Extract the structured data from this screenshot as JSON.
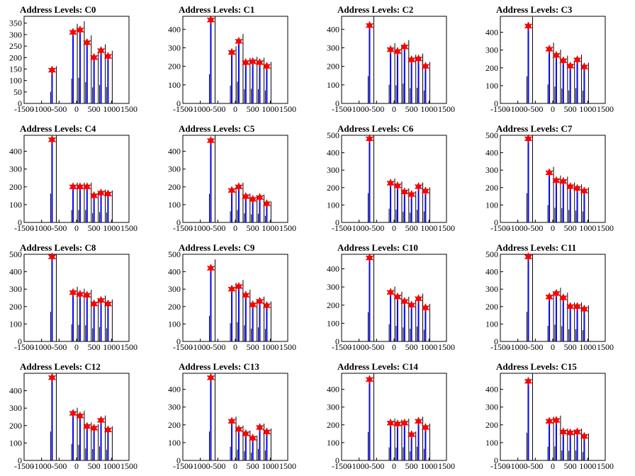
{
  "chart_data": [
    {
      "type": "bar",
      "title": "Address Levels: C0",
      "xlim": [
        -1500,
        1500
      ],
      "ylim": [
        0,
        380
      ],
      "yticks": [
        0,
        50,
        100,
        150,
        200,
        250,
        300,
        350
      ],
      "xticks": [
        -1500,
        -1000,
        -500,
        0,
        500,
        1000,
        1500
      ],
      "peaks": [
        {
          "x": -700,
          "y": 145
        },
        {
          "x": -100,
          "y": 310
        },
        {
          "x": 100,
          "y": 320
        },
        {
          "x": 300,
          "y": 265
        },
        {
          "x": 500,
          "y": 200
        },
        {
          "x": 700,
          "y": 230
        },
        {
          "x": 900,
          "y": 205
        }
      ]
    },
    {
      "type": "bar",
      "title": "Address Levels: C1",
      "xlim": [
        -1500,
        1500
      ],
      "ylim": [
        0,
        470
      ],
      "yticks": [
        0,
        100,
        200,
        300,
        400
      ],
      "xticks": [
        -1500,
        -1000,
        -500,
        0,
        500,
        1000,
        1500
      ],
      "peaks": [
        {
          "x": -700,
          "y": 450
        },
        {
          "x": -100,
          "y": 275
        },
        {
          "x": 100,
          "y": 335
        },
        {
          "x": 300,
          "y": 220
        },
        {
          "x": 500,
          "y": 225
        },
        {
          "x": 700,
          "y": 220
        },
        {
          "x": 900,
          "y": 200
        }
      ]
    },
    {
      "type": "bar",
      "title": "Address Levels: C2",
      "xlim": [
        -1500,
        1500
      ],
      "ylim": [
        0,
        470
      ],
      "yticks": [
        0,
        100,
        200,
        300,
        400
      ],
      "xticks": [
        -1500,
        -1000,
        -500,
        0,
        500,
        1000,
        1500
      ],
      "peaks": [
        {
          "x": -700,
          "y": 420
        },
        {
          "x": -100,
          "y": 290
        },
        {
          "x": 100,
          "y": 280
        },
        {
          "x": 300,
          "y": 305
        },
        {
          "x": 500,
          "y": 235
        },
        {
          "x": 700,
          "y": 240
        },
        {
          "x": 900,
          "y": 200
        }
      ]
    },
    {
      "type": "bar",
      "title": "Address Levels: C3",
      "xlim": [
        -1500,
        1500
      ],
      "ylim": [
        0,
        490
      ],
      "yticks": [
        0,
        100,
        200,
        300,
        400
      ],
      "xticks": [
        -1500,
        -1000,
        -500,
        0,
        500,
        1000,
        1500
      ],
      "peaks": [
        {
          "x": -700,
          "y": 435
        },
        {
          "x": -100,
          "y": 305
        },
        {
          "x": 100,
          "y": 270
        },
        {
          "x": 300,
          "y": 240
        },
        {
          "x": 500,
          "y": 210
        },
        {
          "x": 700,
          "y": 245
        },
        {
          "x": 900,
          "y": 205
        }
      ]
    },
    {
      "type": "bar",
      "title": "Address Levels: C4",
      "xlim": [
        -1500,
        1500
      ],
      "ylim": [
        0,
        490
      ],
      "yticks": [
        0,
        100,
        200,
        300,
        400
      ],
      "xticks": [
        -1500,
        -1000,
        -500,
        0,
        500,
        1000,
        1500
      ],
      "peaks": [
        {
          "x": -700,
          "y": 465
        },
        {
          "x": -100,
          "y": 200
        },
        {
          "x": 100,
          "y": 200
        },
        {
          "x": 300,
          "y": 200
        },
        {
          "x": 500,
          "y": 150
        },
        {
          "x": 700,
          "y": 165
        },
        {
          "x": 900,
          "y": 160
        }
      ]
    },
    {
      "type": "bar",
      "title": "Address Levels: C5",
      "xlim": [
        -1500,
        1500
      ],
      "ylim": [
        0,
        490
      ],
      "yticks": [
        0,
        100,
        200,
        300,
        400
      ],
      "xticks": [
        -1500,
        -1000,
        -500,
        0,
        500,
        1000,
        1500
      ],
      "peaks": [
        {
          "x": -700,
          "y": 460
        },
        {
          "x": -100,
          "y": 180
        },
        {
          "x": 100,
          "y": 200
        },
        {
          "x": 300,
          "y": 145
        },
        {
          "x": 500,
          "y": 130
        },
        {
          "x": 700,
          "y": 140
        },
        {
          "x": 900,
          "y": 105
        }
      ]
    },
    {
      "type": "bar",
      "title": "Address Levels: C6",
      "xlim": [
        -1500,
        1500
      ],
      "ylim": [
        0,
        500
      ],
      "yticks": [
        0,
        100,
        200,
        300,
        400,
        500
      ],
      "xticks": [
        -1500,
        -1000,
        -500,
        0,
        500,
        1000,
        1500
      ],
      "peaks": [
        {
          "x": -700,
          "y": 480
        },
        {
          "x": -100,
          "y": 225
        },
        {
          "x": 100,
          "y": 210
        },
        {
          "x": 300,
          "y": 175
        },
        {
          "x": 500,
          "y": 160
        },
        {
          "x": 700,
          "y": 205
        },
        {
          "x": 900,
          "y": 180
        }
      ]
    },
    {
      "type": "bar",
      "title": "Address Levels: C7",
      "xlim": [
        -1500,
        1500
      ],
      "ylim": [
        0,
        500
      ],
      "yticks": [
        0,
        100,
        200,
        300,
        400,
        500
      ],
      "xticks": [
        -1500,
        -1000,
        -500,
        0,
        500,
        1000,
        1500
      ],
      "peaks": [
        {
          "x": -700,
          "y": 480
        },
        {
          "x": -100,
          "y": 285
        },
        {
          "x": 100,
          "y": 240
        },
        {
          "x": 300,
          "y": 235
        },
        {
          "x": 500,
          "y": 205
        },
        {
          "x": 700,
          "y": 195
        },
        {
          "x": 900,
          "y": 180
        }
      ]
    },
    {
      "type": "bar",
      "title": "Address Levels: C8",
      "xlim": [
        -1500,
        1500
      ],
      "ylim": [
        0,
        500
      ],
      "yticks": [
        0,
        100,
        200,
        300,
        400,
        500
      ],
      "xticks": [
        -1500,
        -1000,
        -500,
        0,
        500,
        1000,
        1500
      ],
      "peaks": [
        {
          "x": -700,
          "y": 485
        },
        {
          "x": -100,
          "y": 280
        },
        {
          "x": 100,
          "y": 270
        },
        {
          "x": 300,
          "y": 265
        },
        {
          "x": 500,
          "y": 215
        },
        {
          "x": 700,
          "y": 235
        },
        {
          "x": 900,
          "y": 215
        }
      ]
    },
    {
      "type": "bar",
      "title": "Address Levels: C9",
      "xlim": [
        -1500,
        1500
      ],
      "ylim": [
        0,
        500
      ],
      "yticks": [
        0,
        100,
        200,
        300,
        400,
        500
      ],
      "xticks": [
        -1500,
        -1000,
        -500,
        0,
        500,
        1000,
        1500
      ],
      "peaks": [
        {
          "x": -700,
          "y": 420
        },
        {
          "x": -100,
          "y": 300
        },
        {
          "x": 100,
          "y": 315
        },
        {
          "x": 300,
          "y": 265
        },
        {
          "x": 500,
          "y": 210
        },
        {
          "x": 700,
          "y": 230
        },
        {
          "x": 900,
          "y": 205
        }
      ]
    },
    {
      "type": "bar",
      "title": "Address Levels: C10",
      "xlim": [
        -1500,
        1500
      ],
      "ylim": [
        0,
        480
      ],
      "yticks": [
        0,
        100,
        200,
        300,
        400
      ],
      "xticks": [
        -1500,
        -1000,
        -500,
        0,
        500,
        1000,
        1500
      ],
      "peaks": [
        {
          "x": -700,
          "y": 460
        },
        {
          "x": -100,
          "y": 270
        },
        {
          "x": 100,
          "y": 245
        },
        {
          "x": 300,
          "y": 220
        },
        {
          "x": 500,
          "y": 200
        },
        {
          "x": 700,
          "y": 235
        },
        {
          "x": 900,
          "y": 185
        }
      ]
    },
    {
      "type": "bar",
      "title": "Address Levels: C11",
      "xlim": [
        -1500,
        1500
      ],
      "ylim": [
        0,
        500
      ],
      "yticks": [
        0,
        100,
        200,
        300,
        400,
        500
      ],
      "xticks": [
        -1500,
        -1000,
        -500,
        0,
        500,
        1000,
        1500
      ],
      "peaks": [
        {
          "x": -700,
          "y": 485
        },
        {
          "x": -100,
          "y": 255
        },
        {
          "x": 100,
          "y": 275
        },
        {
          "x": 300,
          "y": 250
        },
        {
          "x": 500,
          "y": 200
        },
        {
          "x": 700,
          "y": 200
        },
        {
          "x": 900,
          "y": 185
        }
      ]
    },
    {
      "type": "bar",
      "title": "Address Levels: C12",
      "xlim": [
        -1500,
        1500
      ],
      "ylim": [
        0,
        500
      ],
      "yticks": [
        0,
        100,
        200,
        300,
        400
      ],
      "xticks": [
        -1500,
        -1000,
        -500,
        0,
        500,
        1000,
        1500
      ],
      "peaks": [
        {
          "x": -700,
          "y": 475
        },
        {
          "x": -100,
          "y": 270
        },
        {
          "x": 100,
          "y": 255
        },
        {
          "x": 300,
          "y": 195
        },
        {
          "x": 500,
          "y": 185
        },
        {
          "x": 700,
          "y": 230
        },
        {
          "x": 900,
          "y": 175
        }
      ]
    },
    {
      "type": "bar",
      "title": "Address Levels: C13",
      "xlim": [
        -1500,
        1500
      ],
      "ylim": [
        0,
        490
      ],
      "yticks": [
        0,
        100,
        200,
        300,
        400
      ],
      "xticks": [
        -1500,
        -1000,
        -500,
        0,
        500,
        1000,
        1500
      ],
      "peaks": [
        {
          "x": -700,
          "y": 465
        },
        {
          "x": -100,
          "y": 220
        },
        {
          "x": 100,
          "y": 175
        },
        {
          "x": 300,
          "y": 150
        },
        {
          "x": 500,
          "y": 125
        },
        {
          "x": 700,
          "y": 185
        },
        {
          "x": 900,
          "y": 160
        }
      ]
    },
    {
      "type": "bar",
      "title": "Address Levels: C14",
      "xlim": [
        -1500,
        1500
      ],
      "ylim": [
        0,
        490
      ],
      "yticks": [
        0,
        100,
        200,
        300,
        400
      ],
      "xticks": [
        -1500,
        -1000,
        -500,
        0,
        500,
        1000,
        1500
      ],
      "peaks": [
        {
          "x": -700,
          "y": 455
        },
        {
          "x": -100,
          "y": 210
        },
        {
          "x": 100,
          "y": 205
        },
        {
          "x": 300,
          "y": 210
        },
        {
          "x": 500,
          "y": 145
        },
        {
          "x": 700,
          "y": 220
        },
        {
          "x": 900,
          "y": 185
        }
      ]
    },
    {
      "type": "bar",
      "title": "Address Levels: C15",
      "xlim": [
        -1500,
        1500
      ],
      "ylim": [
        0,
        490
      ],
      "yticks": [
        0,
        100,
        200,
        300,
        400
      ],
      "xticks": [
        -1500,
        -1000,
        -500,
        0,
        500,
        1000,
        1500
      ],
      "peaks": [
        {
          "x": -700,
          "y": 445
        },
        {
          "x": -100,
          "y": 220
        },
        {
          "x": 100,
          "y": 225
        },
        {
          "x": 300,
          "y": 160
        },
        {
          "x": 500,
          "y": 155
        },
        {
          "x": 700,
          "y": 160
        },
        {
          "x": 900,
          "y": 135
        }
      ]
    }
  ],
  "colors": {
    "bar_blue": "#0000ff",
    "bar_black": "#000000",
    "marker_red": "#ff0000"
  },
  "marker": "star"
}
